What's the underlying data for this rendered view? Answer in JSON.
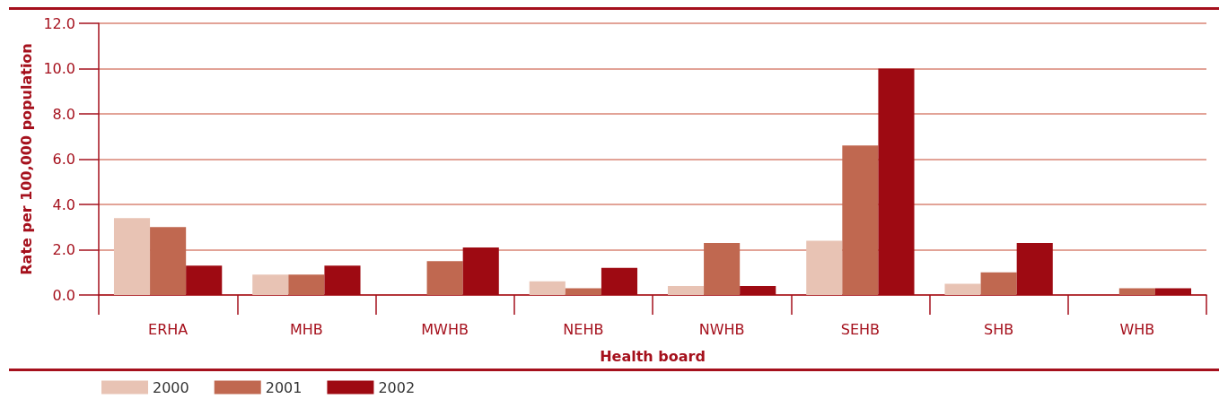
{
  "chart_data": {
    "type": "bar",
    "xlabel": "Health board",
    "ylabel": "Rate per 100,000 population",
    "categories": [
      "ERHA",
      "MHB",
      "MWHB",
      "NEHB",
      "NWHB",
      "SEHB",
      "SHB",
      "WHB"
    ],
    "series": [
      {
        "name": "2000",
        "color": "#e8c3b4",
        "values": [
          3.4,
          0.9,
          null,
          0.6,
          0.4,
          2.4,
          0.5,
          null
        ]
      },
      {
        "name": "2001",
        "color": "#c06850",
        "values": [
          3.0,
          0.9,
          1.5,
          0.3,
          2.3,
          6.6,
          1.0,
          0.3
        ]
      },
      {
        "name": "2002",
        "color": "#9e0a12",
        "values": [
          1.3,
          1.3,
          2.1,
          1.2,
          0.4,
          10.0,
          2.3,
          0.3
        ]
      }
    ],
    "ylim": [
      0,
      12
    ],
    "yticks": [
      {
        "value": 0,
        "label": "0.0"
      },
      {
        "value": 2,
        "label": "2.0"
      },
      {
        "value": 4,
        "label": "4.0"
      },
      {
        "value": 6,
        "label": "6.0"
      },
      {
        "value": 8,
        "label": "8.0"
      },
      {
        "value": 10,
        "label": "10.0"
      },
      {
        "value": 12,
        "label": "12.0"
      }
    ],
    "grid": "y",
    "legend": "bottom left"
  }
}
